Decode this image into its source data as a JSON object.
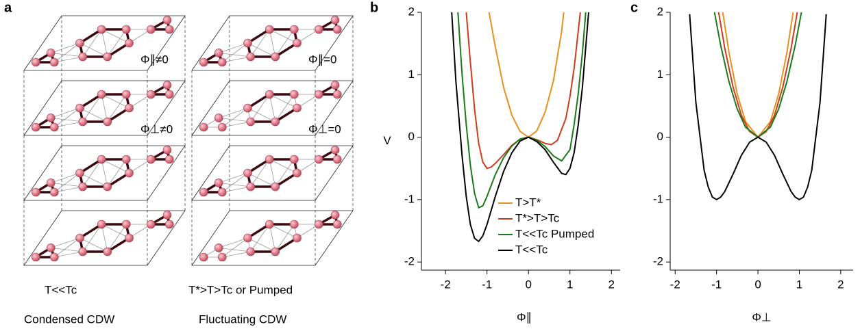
{
  "diagram": {
    "label": "a",
    "left": {
      "annotations": [
        "Φ∥≠0",
        "Φ⊥≠0"
      ],
      "condition": "T<<Tc",
      "caption": "Condensed CDW"
    },
    "right": {
      "annotations": [
        "Φ∥=0",
        "Φ⊥=0"
      ],
      "condition": "T*>T>Tc or Pumped",
      "caption": "Fluctuating CDW"
    }
  },
  "chart_data": [
    {
      "type": "line",
      "label": "b",
      "y_label": "V",
      "x_label": "Φ∥",
      "xlim": [
        -2.58,
        2.21
      ],
      "ylim": [
        -2.13,
        2
      ],
      "xticks": [
        -2,
        -1,
        0,
        1,
        2
      ],
      "yticks": [
        -2,
        -1,
        0,
        1,
        2
      ],
      "series": [
        {
          "name": "T>T*",
          "color": "#e8901c",
          "x": [
            -0.95,
            -0.8,
            -0.6,
            -0.4,
            -0.2,
            0,
            0.2,
            0.4,
            0.6,
            0.8,
            0.85
          ],
          "values": [
            2,
            1.45,
            0.8,
            0.35,
            0.09,
            0,
            0.1,
            0.4,
            0.9,
            1.7,
            2
          ]
        },
        {
          "name": "T*>T>Tc",
          "color": "#d03a1c",
          "x": [
            -1.5,
            -1.4,
            -1.3,
            -1.2,
            -1.1,
            -1.0,
            -0.9,
            -0.8,
            -0.6,
            -0.4,
            -0.2,
            0,
            0.2,
            0.4,
            0.55,
            0.7,
            0.9,
            1.0,
            1.1,
            1.25
          ],
          "values": [
            2,
            1.2,
            0.45,
            -0.1,
            -0.4,
            -0.5,
            -0.48,
            -0.42,
            -0.28,
            -0.13,
            -0.03,
            0,
            -0.04,
            -0.1,
            -0.12,
            -0.05,
            0.3,
            0.65,
            1.1,
            2
          ]
        },
        {
          "name": "T<<Tc Pumped",
          "color": "#1a7a1a",
          "x": [
            -1.7,
            -1.6,
            -1.5,
            -1.4,
            -1.3,
            -1.2,
            -1.1,
            -1.0,
            -0.8,
            -0.6,
            -0.4,
            -0.2,
            0,
            0.2,
            0.4,
            0.6,
            0.8,
            1.0,
            1.1,
            1.2,
            1.3,
            1.38
          ],
          "values": [
            2,
            1.0,
            0.2,
            -0.45,
            -0.9,
            -1.13,
            -1.1,
            -0.95,
            -0.6,
            -0.33,
            -0.14,
            -0.03,
            0,
            -0.05,
            -0.15,
            -0.3,
            -0.38,
            -0.2,
            0.2,
            0.7,
            1.35,
            2
          ]
        },
        {
          "name": "T<<Tc",
          "color": "#000000",
          "x": [
            -1.85,
            -1.75,
            -1.6,
            -1.5,
            -1.4,
            -1.3,
            -1.2,
            -1.1,
            -1.0,
            -0.8,
            -0.6,
            -0.4,
            -0.2,
            0,
            0.2,
            0.4,
            0.6,
            0.8,
            0.9,
            1.0,
            1.1,
            1.2,
            1.3,
            1.45
          ],
          "values": [
            2,
            0.9,
            -0.3,
            -0.95,
            -1.4,
            -1.62,
            -1.67,
            -1.58,
            -1.4,
            -0.95,
            -0.55,
            -0.25,
            -0.06,
            0,
            -0.07,
            -0.2,
            -0.4,
            -0.58,
            -0.6,
            -0.5,
            -0.25,
            0.2,
            0.8,
            2
          ]
        }
      ]
    },
    {
      "type": "line",
      "label": "c",
      "x_label": "Φ⊥",
      "xlim": [
        -2.12,
        2.3
      ],
      "ylim": [
        -2.13,
        2
      ],
      "xticks": [
        -2,
        -1,
        0,
        1,
        2
      ],
      "yticks": [
        -2,
        -1,
        0,
        1,
        2
      ],
      "series": [
        {
          "color": "#e8901c",
          "x": [
            -0.85,
            -0.7,
            -0.5,
            -0.3,
            0,
            0.3,
            0.5,
            0.7,
            0.85
          ],
          "values": [
            2,
            1.36,
            0.69,
            0.25,
            0,
            0.25,
            0.69,
            1.36,
            2
          ]
        },
        {
          "color": "#d03a1c",
          "x": [
            -0.95,
            -0.8,
            -0.6,
            -0.4,
            -0.2,
            0,
            0.2,
            0.4,
            0.6,
            0.8,
            0.95
          ],
          "values": [
            2,
            1.42,
            0.8,
            0.35,
            0.09,
            0,
            0.09,
            0.35,
            0.8,
            1.42,
            2
          ]
        },
        {
          "color": "#1a7a1a",
          "x": [
            -1.05,
            -0.9,
            -0.7,
            -0.5,
            -0.3,
            0,
            0.3,
            0.5,
            0.7,
            0.9,
            1.05
          ],
          "values": [
            2,
            1.47,
            0.89,
            0.45,
            0.16,
            0,
            0.16,
            0.45,
            0.89,
            1.47,
            2
          ]
        },
        {
          "color": "#000000",
          "x": [
            -1.65,
            -1.5,
            -1.3,
            -1.2,
            -1.1,
            -1,
            -0.9,
            -0.8,
            -0.6,
            -0.4,
            -0.2,
            0,
            0.2,
            0.4,
            0.6,
            0.8,
            0.9,
            1,
            1.1,
            1.2,
            1.3,
            1.5,
            1.65
          ],
          "values": [
            1.97,
            0.56,
            -0.53,
            -0.8,
            -0.96,
            -1,
            -0.96,
            -0.87,
            -0.59,
            -0.29,
            -0.08,
            0,
            -0.08,
            -0.29,
            -0.59,
            -0.87,
            -0.96,
            -1,
            -0.96,
            -0.8,
            -0.53,
            0.56,
            1.97
          ]
        }
      ]
    }
  ]
}
